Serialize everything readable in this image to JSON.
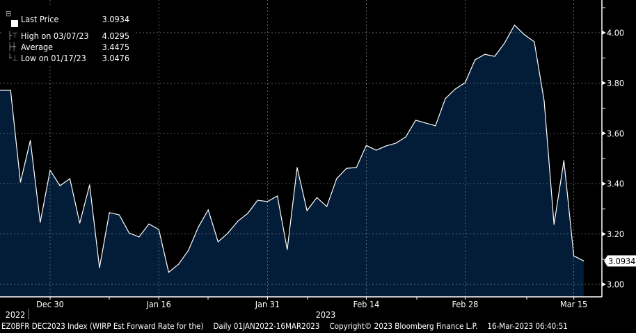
{
  "legend": {
    "items": [
      {
        "label": "Last Price",
        "value": "3.0934",
        "icon": "filled-square-icon"
      },
      {
        "label": "High on 03/07/23",
        "value": "4.0295",
        "icon": "high-marker-icon"
      },
      {
        "label": "Average",
        "value": "3.4475",
        "icon": "average-marker-icon"
      },
      {
        "label": "Low on 01/17/23",
        "value": "3.0476",
        "icon": "low-marker-icon"
      }
    ]
  },
  "footer": {
    "security": "EZ0BFR DEC2023 Index (WIRP Est Forward Rate for the)",
    "range": "Daily 01JAN2022-16MAR2023",
    "copyright": "Copyright© 2023 Bloomberg Finance L.P.",
    "timestamp": "16-Mar-2023 06:40:51"
  },
  "colors": {
    "background": "#000000",
    "area_fill": "#031C38",
    "line": "#FFFFFF",
    "grid": "#8A8A8A"
  },
  "chart_data": {
    "type": "area",
    "title": "",
    "xlabel": "",
    "ylabel": "",
    "ylim": [
      2.93,
      4.13
    ],
    "grid": true,
    "legend_position": "top-left",
    "y_ticks": [
      "3.00",
      "3.20",
      "3.40",
      "3.60",
      "3.80",
      "4.00"
    ],
    "y_tick_values": [
      3.0,
      3.2,
      3.4,
      3.6,
      3.8,
      4.0
    ],
    "x_ticks": [
      {
        "date": "2022-12-30",
        "label": "Dec 30"
      },
      {
        "date": "2023-01-16",
        "label": "Jan 16"
      },
      {
        "date": "2023-01-31",
        "label": "Jan 31"
      },
      {
        "date": "2023-02-14",
        "label": "Feb 14"
      },
      {
        "date": "2023-02-28",
        "label": "Feb 28"
      },
      {
        "date": "2023-03-15",
        "label": "Mar 15"
      }
    ],
    "year_labels": [
      {
        "date": "2022-12-23",
        "label": "2022"
      },
      {
        "date": "2023-02-01",
        "label": "2023"
      }
    ],
    "last_value_label": "3.0934",
    "series": [
      {
        "name": "Last Price",
        "x": [
          "2022-12-23",
          "2022-12-26",
          "2022-12-27",
          "2022-12-28",
          "2022-12-29",
          "2022-12-30",
          "2023-01-02",
          "2023-01-03",
          "2023-01-04",
          "2023-01-05",
          "2023-01-06",
          "2023-01-09",
          "2023-01-10",
          "2023-01-11",
          "2023-01-12",
          "2023-01-13",
          "2023-01-16",
          "2023-01-17",
          "2023-01-18",
          "2023-01-19",
          "2023-01-20",
          "2023-01-23",
          "2023-01-24",
          "2023-01-25",
          "2023-01-26",
          "2023-01-27",
          "2023-01-30",
          "2023-01-31",
          "2023-02-01",
          "2023-02-02",
          "2023-02-03",
          "2023-02-06",
          "2023-02-07",
          "2023-02-08",
          "2023-02-09",
          "2023-02-10",
          "2023-02-13",
          "2023-02-14",
          "2023-02-15",
          "2023-02-16",
          "2023-02-17",
          "2023-02-20",
          "2023-02-21",
          "2023-02-22",
          "2023-02-23",
          "2023-02-24",
          "2023-02-27",
          "2023-02-28",
          "2023-03-01",
          "2023-03-02",
          "2023-03-03",
          "2023-03-06",
          "2023-03-07",
          "2023-03-08",
          "2023-03-09",
          "2023-03-10",
          "2023-03-13",
          "2023-03-14",
          "2023-03-15",
          "2023-03-16"
        ],
        "values": [
          3.771,
          3.771,
          3.406,
          3.572,
          3.246,
          3.453,
          3.392,
          3.42,
          3.243,
          3.395,
          3.066,
          3.285,
          3.276,
          3.204,
          3.188,
          3.24,
          3.218,
          3.048,
          3.08,
          3.135,
          3.227,
          3.296,
          3.169,
          3.204,
          3.251,
          3.282,
          3.334,
          3.329,
          3.351,
          3.138,
          3.464,
          3.293,
          3.345,
          3.309,
          3.42,
          3.461,
          3.464,
          3.552,
          3.533,
          3.55,
          3.561,
          3.586,
          3.652,
          3.641,
          3.63,
          3.738,
          3.776,
          3.801,
          3.892,
          3.914,
          3.906,
          3.959,
          4.03,
          3.992,
          3.964,
          3.729,
          3.238,
          3.492,
          3.113,
          3.093
        ]
      }
    ]
  }
}
